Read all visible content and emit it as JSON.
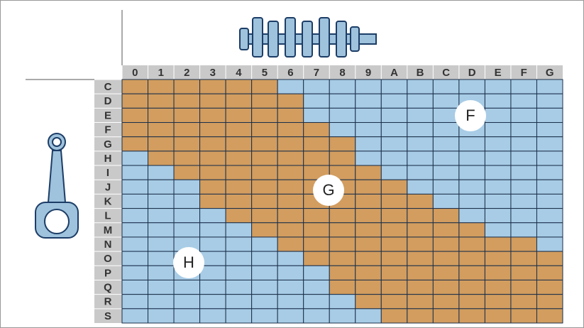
{
  "table": {
    "columns": [
      "0",
      "1",
      "2",
      "3",
      "4",
      "5",
      "6",
      "7",
      "8",
      "9",
      "A",
      "B",
      "C",
      "D",
      "E",
      "F",
      "G"
    ],
    "rows": [
      "C",
      "D",
      "E",
      "F",
      "G",
      "H",
      "I",
      "J",
      "K",
      "L",
      "M",
      "N",
      "O",
      "P",
      "Q",
      "R",
      "S"
    ]
  },
  "zones": [
    {
      "label": "F"
    },
    {
      "label": "G"
    },
    {
      "label": "H"
    }
  ]
}
